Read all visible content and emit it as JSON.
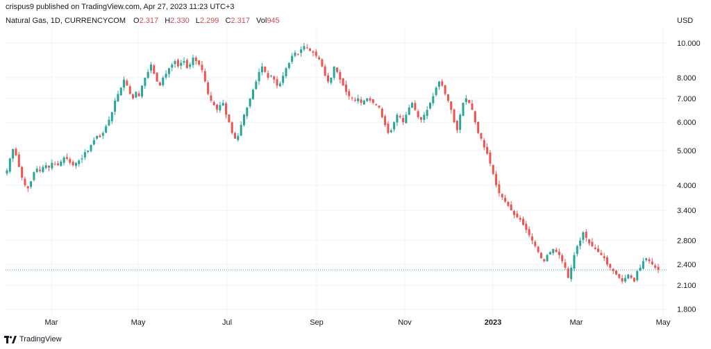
{
  "header": {
    "published": "crispus9 published on TradingView.com, Apr 27, 2023 11:23 UTC+3"
  },
  "legend": {
    "symbol": "Natural Gas, 1D, CURRENCYCOM",
    "o_label": "O",
    "o_value": "2.317",
    "h_label": "H",
    "h_value": "2.330",
    "l_label": "L",
    "l_value": "2.299",
    "c_label": "C",
    "c_value": "2.317",
    "vol_label": "Vol",
    "vol_value": "945"
  },
  "footer": {
    "brand": "TradingView"
  },
  "colors": {
    "up": "#26a69a",
    "down": "#ef5350",
    "grid": "#f0f3fa",
    "last_line": "#26a69a"
  },
  "chart_data": {
    "type": "candlestick",
    "title": "Natural Gas, 1D, CURRENCYCOM",
    "currency_label": "USD",
    "y_scale": "log",
    "ylim": [
      1.7,
      11.0
    ],
    "y_ticks": [
      "10.000",
      "8.000",
      "7.000",
      "6.000",
      "5.000",
      "4.000",
      "3.400",
      "2.800",
      "2.400",
      "2.100",
      "1.800"
    ],
    "x_ticks": [
      "Mar",
      "May",
      "Jul",
      "Sep",
      "Nov",
      "2023",
      "Mar",
      "May"
    ],
    "last_price": 2.317,
    "series": [
      {
        "name": "Natural Gas",
        "close_path": [
          4.4,
          4.75,
          5.05,
          4.85,
          4.5,
          4.2,
          4.0,
          3.92,
          4.1,
          4.35,
          4.45,
          4.38,
          4.5,
          4.55,
          4.48,
          4.62,
          4.58,
          4.55,
          4.66,
          4.78,
          4.74,
          4.62,
          4.55,
          4.62,
          4.69,
          4.75,
          4.95,
          5.0,
          5.18,
          5.35,
          5.5,
          5.45,
          5.6,
          5.85,
          6.1,
          6.4,
          6.9,
          7.2,
          7.5,
          7.9,
          7.6,
          7.2,
          7.0,
          7.3,
          7.1,
          7.6,
          8.0,
          8.3,
          8.7,
          8.2,
          7.8,
          7.6,
          8.0,
          8.2,
          8.5,
          8.7,
          8.9,
          8.6,
          8.8,
          8.9,
          8.5,
          8.7,
          9.1,
          8.9,
          8.7,
          8.4,
          7.8,
          7.2,
          6.9,
          6.7,
          6.5,
          6.7,
          6.8,
          6.3,
          6.0,
          5.6,
          5.4,
          5.5,
          5.9,
          6.3,
          6.6,
          7.0,
          7.4,
          7.8,
          8.3,
          8.6,
          8.3,
          8.0,
          8.1,
          7.9,
          7.6,
          7.7,
          8.1,
          8.5,
          8.8,
          9.2,
          9.4,
          9.3,
          9.6,
          9.8,
          9.7,
          9.5,
          9.4,
          9.2,
          9.0,
          8.6,
          8.1,
          7.8,
          8.0,
          8.6,
          8.3,
          7.9,
          7.6,
          7.3,
          7.1,
          7.0,
          6.9,
          7.0,
          6.8,
          6.9,
          7.0,
          6.9,
          6.8,
          6.7,
          6.6,
          6.2,
          5.9,
          5.6,
          5.7,
          6.0,
          6.3,
          6.2,
          6.0,
          6.3,
          6.6,
          6.8,
          6.5,
          6.2,
          6.1,
          6.3,
          6.5,
          6.8,
          7.1,
          7.5,
          7.8,
          7.6,
          7.2,
          6.9,
          6.5,
          6.0,
          5.7,
          6.3,
          6.8,
          7.0,
          6.8,
          6.5,
          6.0,
          5.6,
          5.4,
          5.1,
          4.9,
          4.6,
          4.3,
          4.0,
          3.8,
          3.7,
          3.6,
          3.5,
          3.4,
          3.3,
          3.25,
          3.2,
          3.1,
          3.0,
          2.9,
          2.8,
          2.7,
          2.6,
          2.5,
          2.45,
          2.55,
          2.6,
          2.65,
          2.6,
          2.55,
          2.45,
          2.35,
          2.2,
          2.35,
          2.55,
          2.7,
          2.8,
          2.95,
          2.85,
          2.75,
          2.7,
          2.65,
          2.6,
          2.55,
          2.5,
          2.4,
          2.35,
          2.3,
          2.25,
          2.2,
          2.15,
          2.2,
          2.25,
          2.2,
          2.15,
          2.3,
          2.35,
          2.45,
          2.5,
          2.45,
          2.4,
          2.35,
          2.317
        ]
      }
    ]
  }
}
